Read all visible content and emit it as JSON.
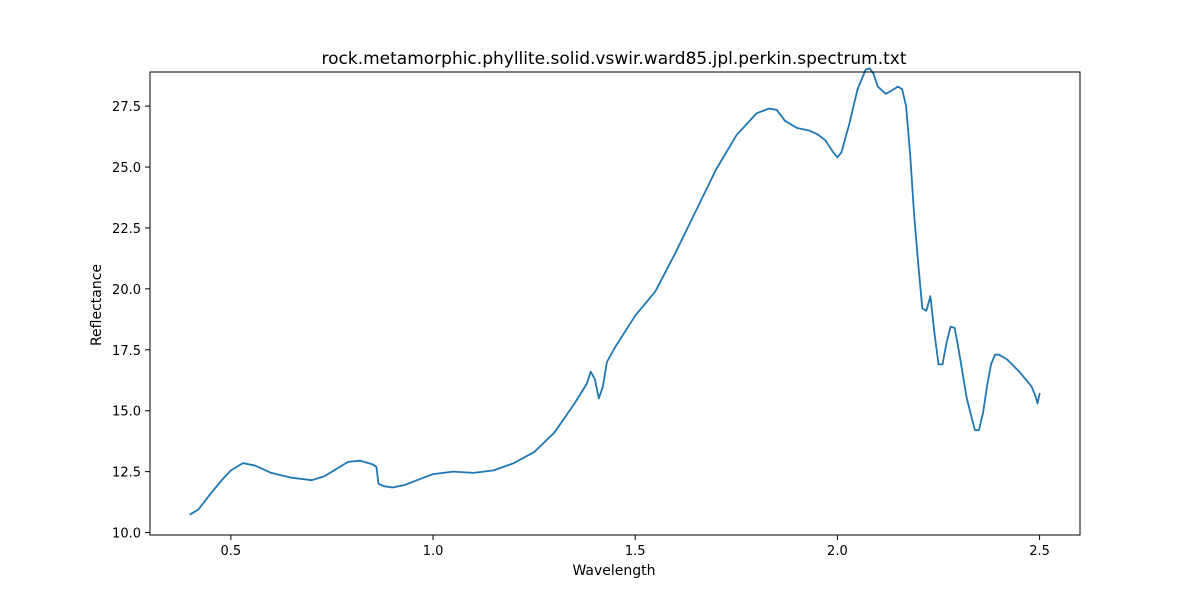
{
  "chart_data": {
    "type": "line",
    "title": "rock.metamorphic.phyllite.solid.vswir.ward85.jpl.perkin.spectrum.txt",
    "xlabel": "Wavelength",
    "ylabel": "Reflectance",
    "xlim": [
      0.3,
      2.6
    ],
    "ylim": [
      9.9,
      28.9
    ],
    "xticks": [
      0.5,
      1.0,
      1.5,
      2.0,
      2.5
    ],
    "xtick_labels": [
      "0.5",
      "1.0",
      "1.5",
      "2.0",
      "2.5"
    ],
    "yticks": [
      10.0,
      12.5,
      15.0,
      17.5,
      20.0,
      22.5,
      25.0,
      27.5
    ],
    "ytick_labels": [
      "10.0",
      "12.5",
      "15.0",
      "17.5",
      "20.0",
      "22.5",
      "25.0",
      "27.5"
    ],
    "grid": false,
    "color": "#1f77b4",
    "series": [
      {
        "x": [
          0.4,
          0.42,
          0.45,
          0.48,
          0.5,
          0.53,
          0.56,
          0.6,
          0.65,
          0.7,
          0.73,
          0.76,
          0.79,
          0.82,
          0.85,
          0.86,
          0.865,
          0.88,
          0.9,
          0.93,
          0.96,
          1.0,
          1.05,
          1.1,
          1.15,
          1.2,
          1.25,
          1.3,
          1.35,
          1.38,
          1.39,
          1.4,
          1.41,
          1.42,
          1.43,
          1.45,
          1.5,
          1.55,
          1.6,
          1.65,
          1.7,
          1.75,
          1.8,
          1.83,
          1.85,
          1.87,
          1.9,
          1.93,
          1.95,
          1.97,
          1.99,
          2.0,
          2.01,
          2.03,
          2.05,
          2.07,
          2.08,
          2.09,
          2.1,
          2.12,
          2.13,
          2.15,
          2.16,
          2.17,
          2.18,
          2.19,
          2.2,
          2.21,
          2.22,
          2.225,
          2.23,
          2.24,
          2.25,
          2.26,
          2.27,
          2.28,
          2.29,
          2.3,
          2.32,
          2.34,
          2.35,
          2.36,
          2.37,
          2.38,
          2.39,
          2.4,
          2.42,
          2.45,
          2.48,
          2.49,
          2.495,
          2.5
        ],
        "y": [
          10.75,
          10.95,
          11.6,
          12.2,
          12.55,
          12.85,
          12.75,
          12.45,
          12.25,
          12.15,
          12.3,
          12.6,
          12.9,
          12.95,
          12.8,
          12.7,
          12.0,
          11.9,
          11.85,
          11.95,
          12.15,
          12.4,
          12.5,
          12.45,
          12.55,
          12.85,
          13.3,
          14.1,
          15.3,
          16.1,
          16.6,
          16.3,
          15.5,
          16.0,
          17.0,
          17.6,
          18.9,
          19.9,
          21.5,
          23.2,
          24.9,
          26.3,
          27.2,
          27.4,
          27.35,
          26.9,
          26.6,
          26.5,
          26.35,
          26.1,
          25.6,
          25.4,
          25.6,
          26.8,
          28.2,
          29.0,
          29.05,
          28.8,
          28.3,
          28.0,
          28.1,
          28.3,
          28.2,
          27.5,
          25.5,
          23.0,
          21.0,
          19.2,
          19.1,
          19.4,
          19.7,
          18.2,
          16.9,
          16.9,
          17.8,
          18.45,
          18.4,
          17.5,
          15.5,
          14.2,
          14.2,
          14.9,
          16.0,
          16.9,
          17.3,
          17.3,
          17.1,
          16.6,
          16.0,
          15.6,
          15.3,
          15.7
        ]
      }
    ]
  }
}
